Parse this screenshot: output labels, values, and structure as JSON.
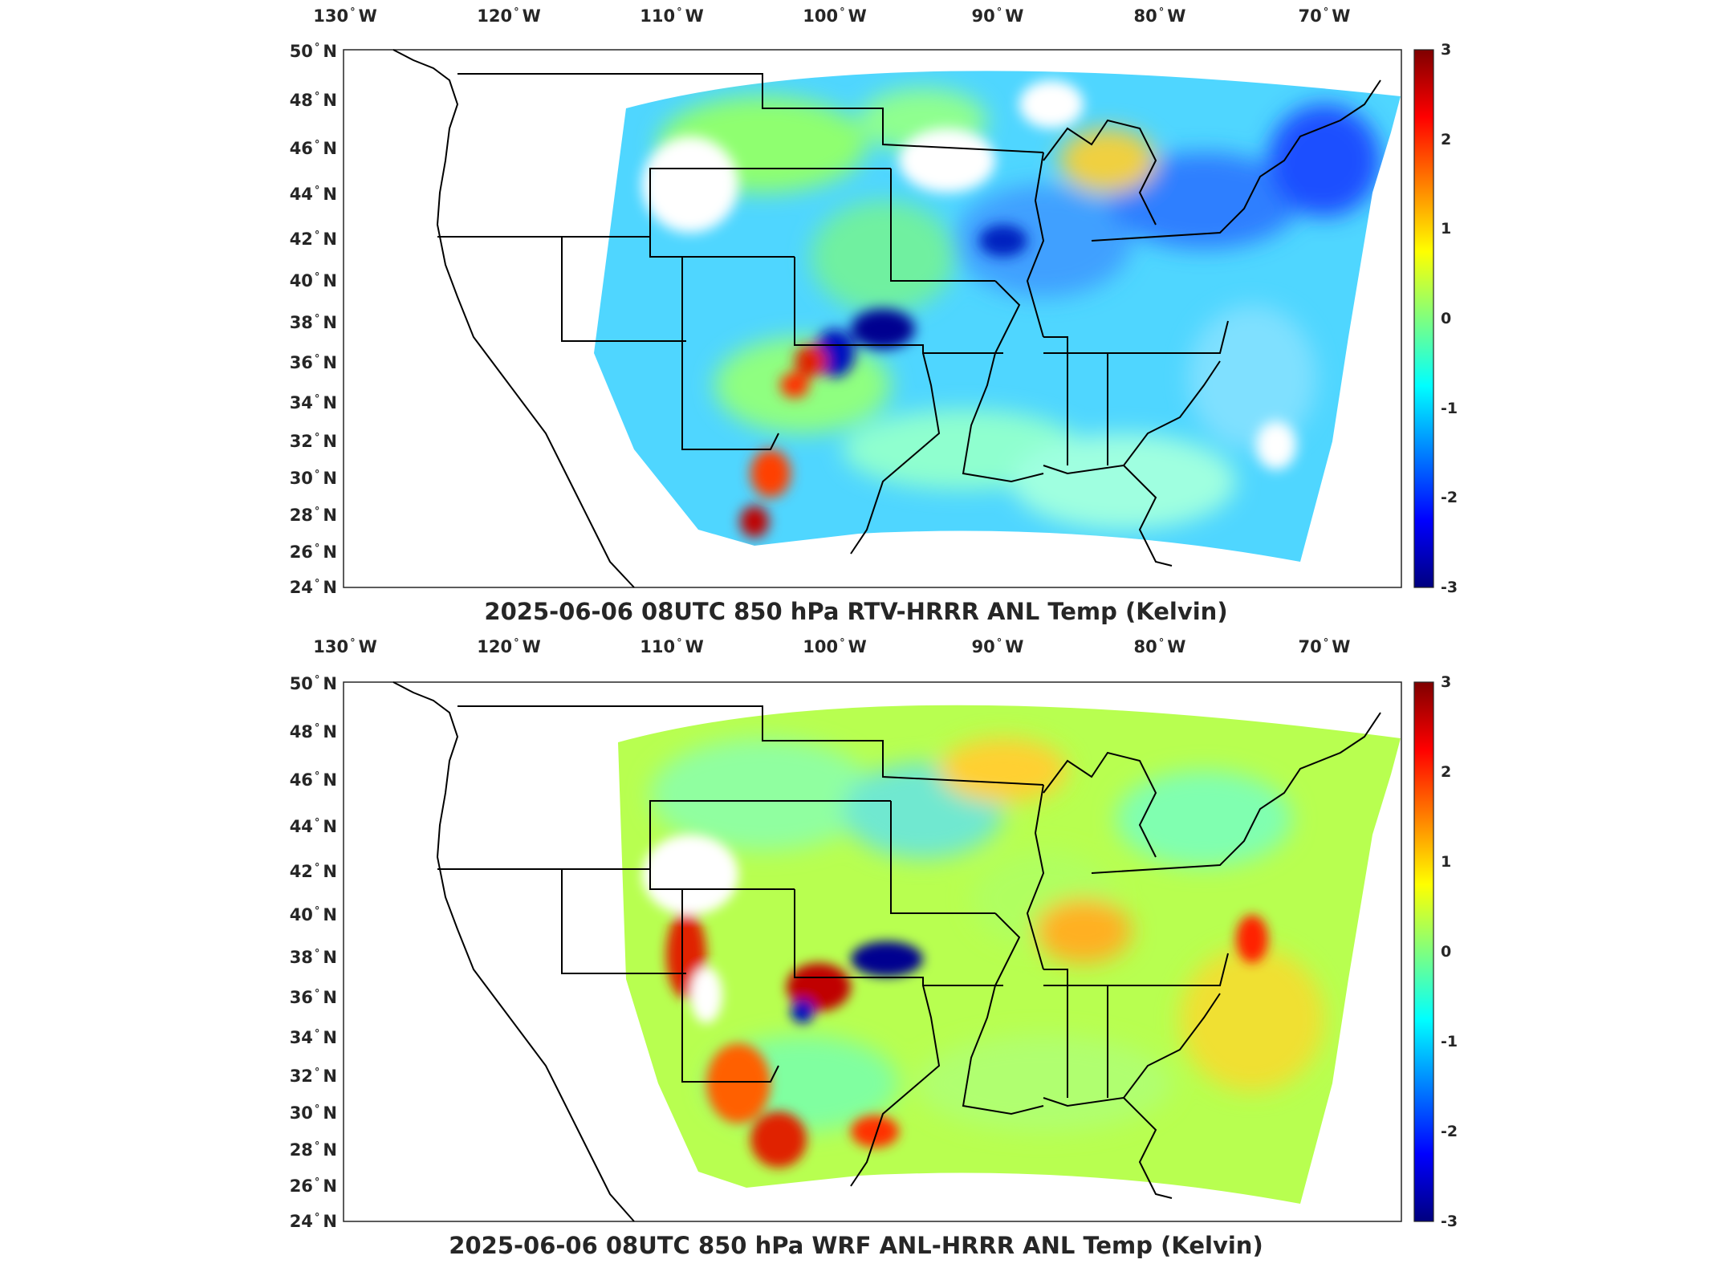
{
  "panels": [
    {
      "title": "2025-06-06 08UTC 850 hPa RTV-HRRR ANL Temp (Kelvin)",
      "lon_labels": [
        {
          "deg": "130",
          "dir": "W"
        },
        {
          "deg": "120",
          "dir": "W"
        },
        {
          "deg": "110",
          "dir": "W"
        },
        {
          "deg": "100",
          "dir": "W"
        },
        {
          "deg": "90",
          "dir": "W"
        },
        {
          "deg": "80",
          "dir": "W"
        },
        {
          "deg": "70",
          "dir": "W"
        }
      ],
      "lat_labels": [
        {
          "deg": "50",
          "dir": "N"
        },
        {
          "deg": "48",
          "dir": "N"
        },
        {
          "deg": "46",
          "dir": "N"
        },
        {
          "deg": "44",
          "dir": "N"
        },
        {
          "deg": "42",
          "dir": "N"
        },
        {
          "deg": "40",
          "dir": "N"
        },
        {
          "deg": "38",
          "dir": "N"
        },
        {
          "deg": "36",
          "dir": "N"
        },
        {
          "deg": "34",
          "dir": "N"
        },
        {
          "deg": "32",
          "dir": "N"
        },
        {
          "deg": "30",
          "dir": "N"
        },
        {
          "deg": "28",
          "dir": "N"
        },
        {
          "deg": "26",
          "dir": "N"
        },
        {
          "deg": "24",
          "dir": "N"
        }
      ],
      "colorbar_ticks": [
        "3",
        "2",
        "1",
        "0",
        "-1",
        "-2",
        "-3"
      ],
      "field_character": "mostly cyan-blue (negative) with dark blue cells over the plains and northeast, warm red spots in the southwest"
    },
    {
      "title": "2025-06-06 08UTC 850 hPa WRF ANL-HRRR ANL Temp (Kelvin)",
      "lon_labels": [
        {
          "deg": "130",
          "dir": "W"
        },
        {
          "deg": "120",
          "dir": "W"
        },
        {
          "deg": "110",
          "dir": "W"
        },
        {
          "deg": "100",
          "dir": "W"
        },
        {
          "deg": "90",
          "dir": "W"
        },
        {
          "deg": "80",
          "dir": "W"
        },
        {
          "deg": "70",
          "dir": "W"
        }
      ],
      "lat_labels": [
        {
          "deg": "50",
          "dir": "N"
        },
        {
          "deg": "48",
          "dir": "N"
        },
        {
          "deg": "46",
          "dir": "N"
        },
        {
          "deg": "44",
          "dir": "N"
        },
        {
          "deg": "42",
          "dir": "N"
        },
        {
          "deg": "40",
          "dir": "N"
        },
        {
          "deg": "38",
          "dir": "N"
        },
        {
          "deg": "36",
          "dir": "N"
        },
        {
          "deg": "34",
          "dir": "N"
        },
        {
          "deg": "32",
          "dir": "N"
        },
        {
          "deg": "30",
          "dir": "N"
        },
        {
          "deg": "28",
          "dir": "N"
        },
        {
          "deg": "26",
          "dir": "N"
        },
        {
          "deg": "24",
          "dir": "N"
        }
      ],
      "colorbar_ticks": [
        "3",
        "2",
        "1",
        "0",
        "-1",
        "-2",
        "-3"
      ],
      "field_character": "mostly green-yellow (near zero to positive) with warm red/orange patches in the west and a dark blue blob over Kansas"
    }
  ],
  "colormap": [
    "#00007f",
    "#0000ff",
    "#007fff",
    "#00ffff",
    "#7fff7f",
    "#ffff00",
    "#ff7f00",
    "#ff0000",
    "#7f0000"
  ]
}
